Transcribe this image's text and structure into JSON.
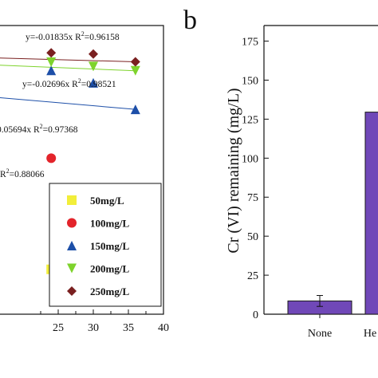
{
  "chart_data": [
    {
      "type": "scatter",
      "panel_label": "",
      "x": [
        24,
        30,
        36
      ],
      "xticks": [
        "25",
        "30",
        "35",
        "40"
      ],
      "xlim": [
        0,
        40
      ],
      "series": [
        {
          "name": "50mg/L",
          "color": "#f2ee3a",
          "marker": "square",
          "x": [
            24
          ],
          "y": [
            -5.75
          ]
        },
        {
          "name": "100mg/L",
          "color": "#e3242b",
          "marker": "circle",
          "x": [
            24
          ],
          "y": [
            -2.9
          ]
        },
        {
          "name": "150mg/L",
          "color": "#1d4fa8",
          "marker": "triangle-up",
          "x": [
            24,
            30,
            36
          ],
          "y": [
            -0.65,
            -0.97,
            -1.65
          ]
        },
        {
          "name": "200mg/L",
          "color": "#7ed32c",
          "marker": "triangle-down",
          "x": [
            24,
            30,
            36
          ],
          "y": [
            -0.44,
            -0.55,
            -0.66
          ]
        },
        {
          "name": "250mg/L",
          "color": "#7a2020",
          "marker": "diamond",
          "x": [
            24,
            30,
            36
          ],
          "y": [
            -0.2,
            -0.23,
            -0.43
          ]
        }
      ],
      "annotations": [
        "y=-0.01835x  R",
        "2",
        "=0.96158",
        "y=-0.02696x  R",
        "2",
        "=0.98521",
        "0.05694x  R",
        "2",
        "=0.97368",
        "R",
        "2",
        "=0.88066"
      ],
      "equations": [
        {
          "pre": "y=-0.01835x  R",
          "sup": "2",
          "post": "=0.96158"
        },
        {
          "pre": "y=-0.02696x  R",
          "sup": "2",
          "post": "=0.98521"
        },
        {
          "pre": "0.05694x  R",
          "sup": "2",
          "post": "=0.97368"
        },
        {
          "pre": "R",
          "sup": "2",
          "post": "=0.88066"
        }
      ]
    },
    {
      "type": "bar",
      "panel_label": "b",
      "categories": [
        "None",
        "He"
      ],
      "values": [
        8.5,
        129.5
      ],
      "errors": [
        3.5,
        0
      ],
      "bar_color": "#7048b8",
      "ylabel": "Cr (VI) remaining (mg/L)",
      "ylim": [
        0,
        185
      ],
      "yticks": [
        "0",
        "25",
        "50",
        "75",
        "100",
        "125",
        "150",
        "175"
      ],
      "ytick_values": [
        0,
        25,
        50,
        75,
        100,
        125,
        150,
        175
      ]
    }
  ]
}
